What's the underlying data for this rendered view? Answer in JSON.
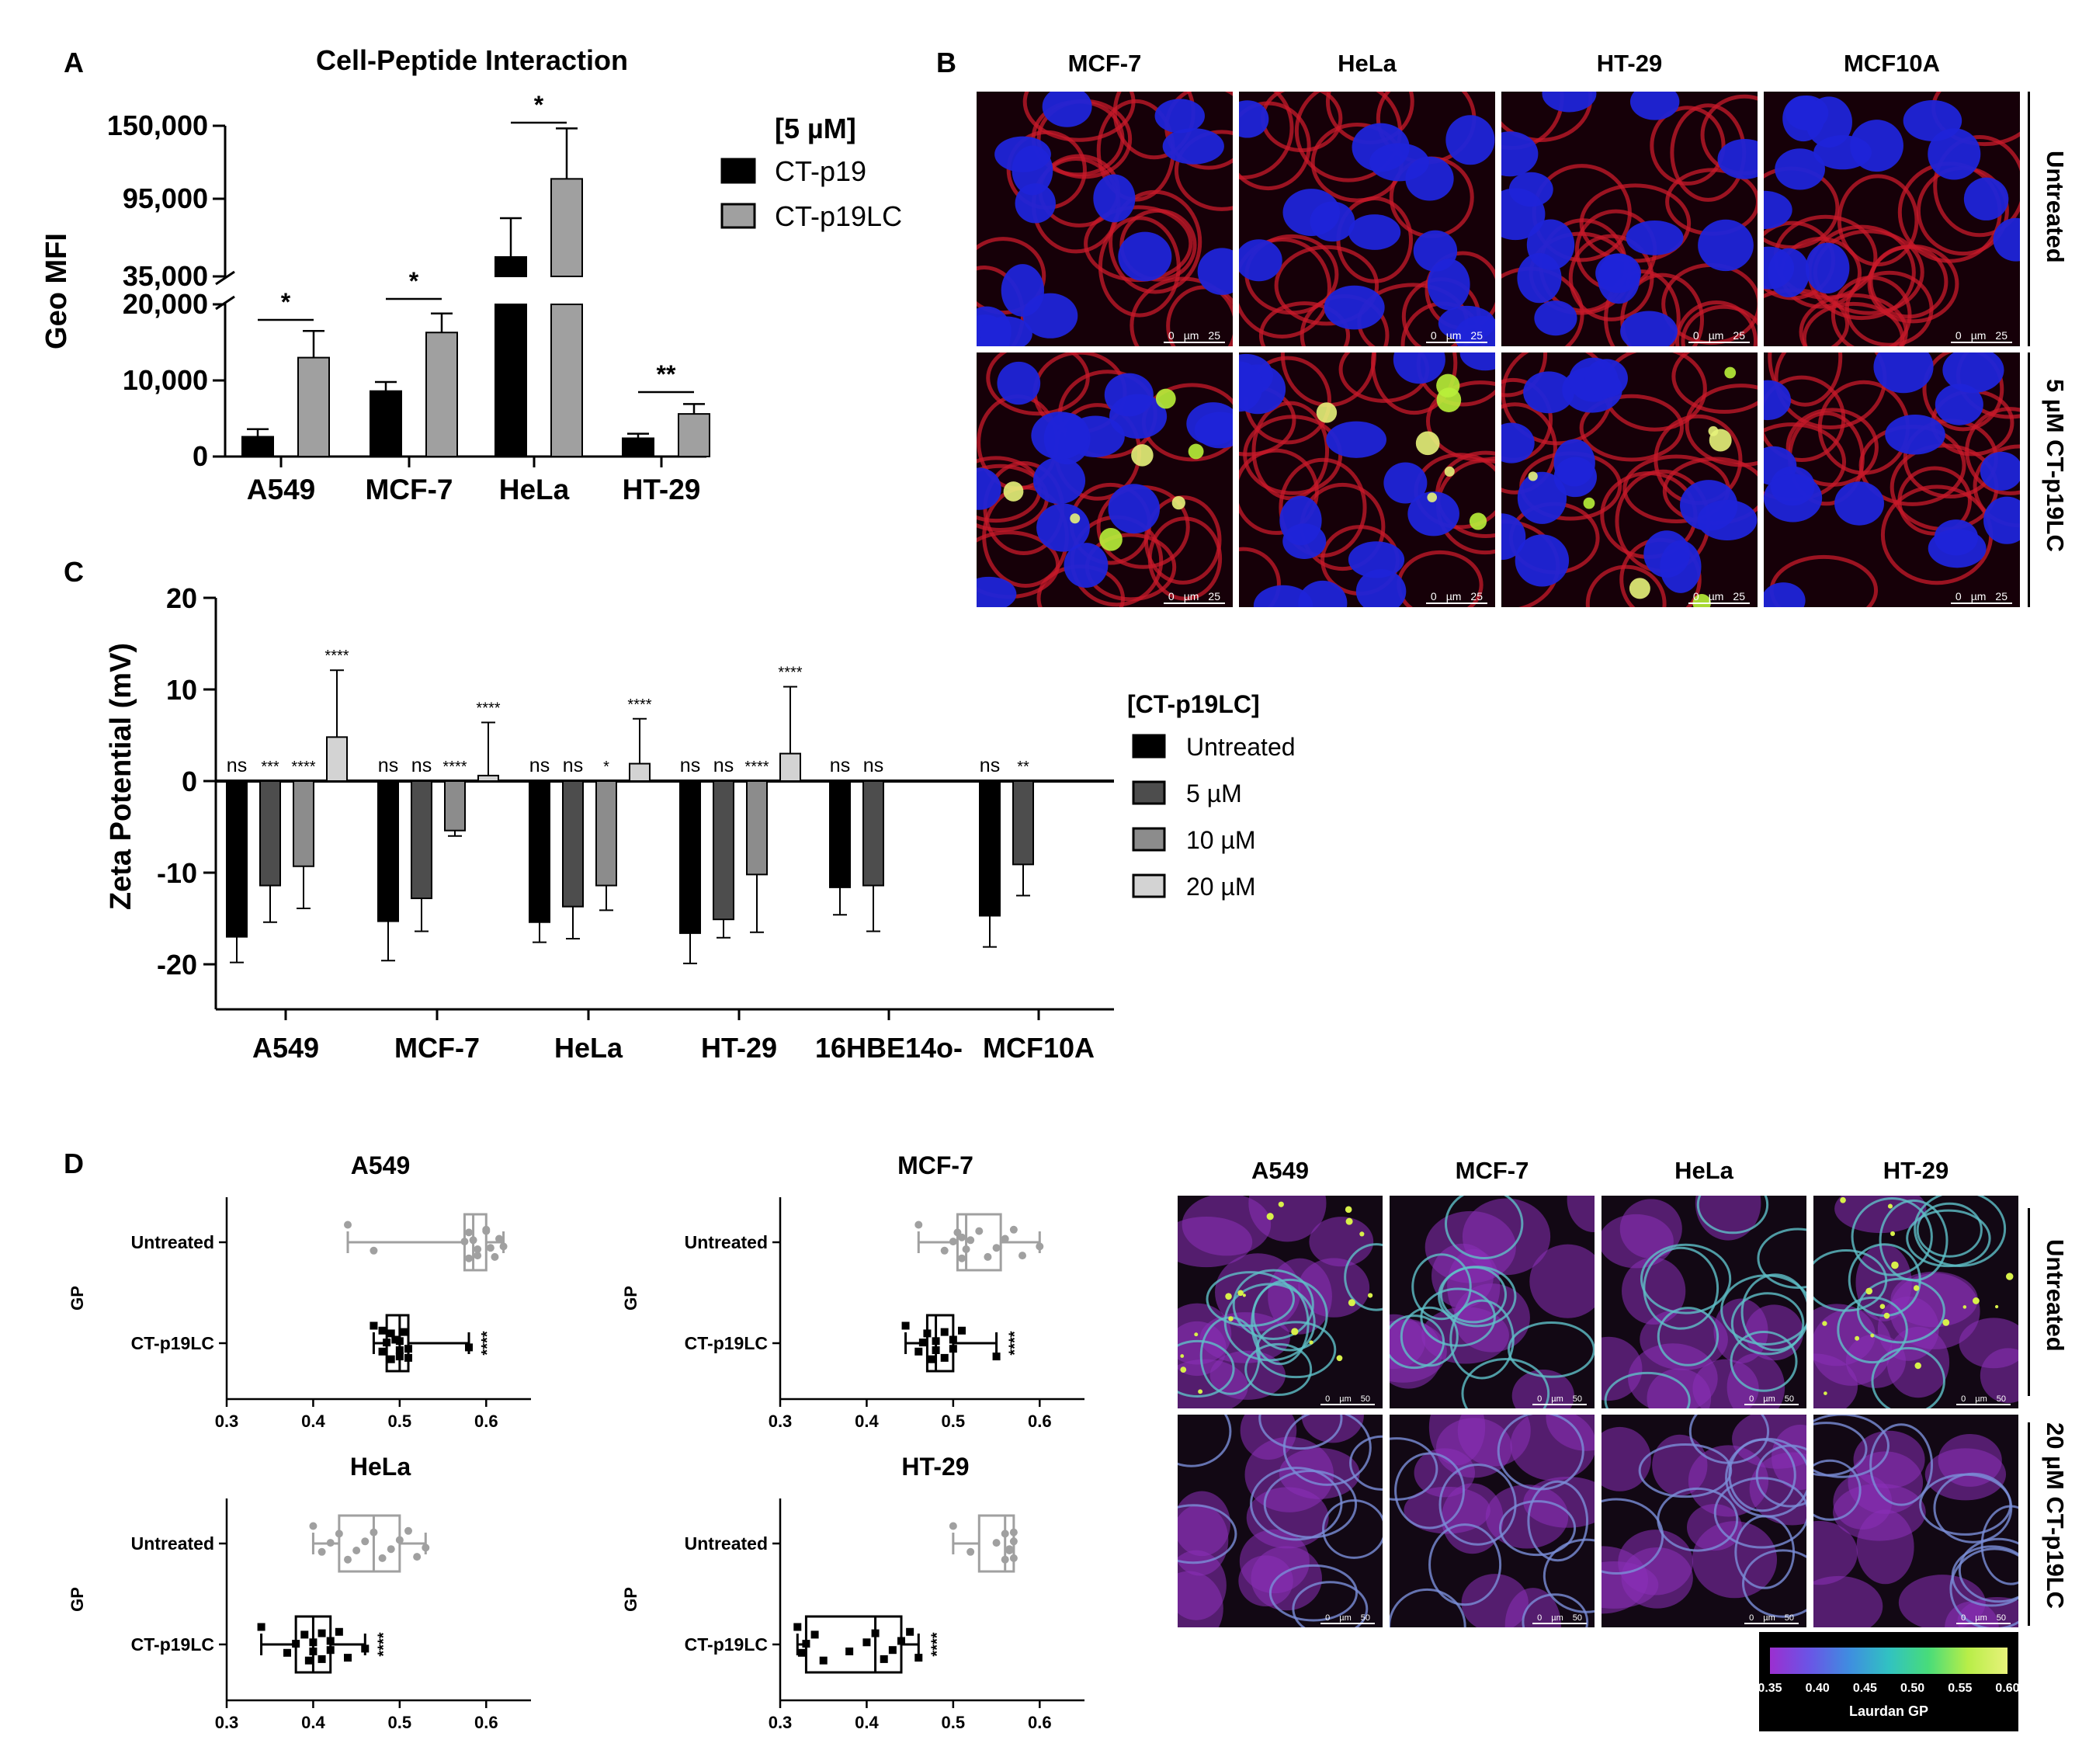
{
  "panel_labels": {
    "a": "A",
    "b": "B",
    "c": "C",
    "d": "D"
  },
  "panelA": {
    "title": "Cell-Peptide Interaction",
    "ylabel": "Geo MFI",
    "legend_title": "[5 µM]",
    "legend": [
      "CT-p19",
      "CT-p19LC"
    ],
    "yticks_upper": [
      "150,000",
      "95,000",
      "35,000"
    ],
    "yticks_lower": [
      "20,000",
      "10,000",
      "0"
    ],
    "significance": [
      "*",
      "*",
      "*",
      "**"
    ]
  },
  "panelB": {
    "columns": [
      "MCF-7",
      "HeLa",
      "HT-29",
      "MCF10A"
    ],
    "rows": [
      "Untreated",
      "5 µM CT-p19LC"
    ],
    "scale": {
      "zero": "0",
      "unit": "µm",
      "value": "25"
    }
  },
  "panelC": {
    "ylabel": "Zeta Potential (mV)",
    "yticks": [
      "20",
      "10",
      "0",
      "-10",
      "-20"
    ],
    "legend_title": "[CT-p19LC]",
    "legend": [
      "Untreated",
      "5 µM",
      "10 µM",
      "20 µM"
    ],
    "significance": {
      "A549": [
        "ns",
        "***",
        "****",
        "****"
      ],
      "MCF-7": [
        "ns",
        "ns",
        "****",
        "****"
      ],
      "HeLa": [
        "ns",
        "ns",
        "*",
        "****"
      ],
      "HT-29": [
        "ns",
        "ns",
        "****",
        "****"
      ],
      "16HBE14o-": [
        "ns",
        "ns"
      ],
      "MCF10A": [
        "ns",
        "**"
      ]
    }
  },
  "panelD": {
    "ylabel": "GP",
    "row_labels": [
      "Untreated",
      "CT-p19LC"
    ],
    "xticks": [
      "0.3",
      "0.4",
      "0.5",
      "0.6"
    ],
    "plot_titles": [
      "A549",
      "MCF-7",
      "HeLa",
      "HT-29"
    ],
    "significance": "****",
    "image_columns": [
      "A549",
      "MCF-7",
      "HeLa",
      "HT-29"
    ],
    "image_rows": [
      "Untreated",
      "20 µM CT-p19LC"
    ],
    "scale": {
      "zero": "0",
      "unit": "µm",
      "value": "50"
    },
    "colorbar": {
      "title": "Laurdan GP",
      "ticks": [
        "0.35",
        "0.40",
        "0.45",
        "0.50",
        "0.55",
        "0.60"
      ]
    }
  },
  "colors": {
    "black": "#000000",
    "dark_gray": "#4d4d4d",
    "mid_gray": "#8c8c8c",
    "light_gray": "#d3d3d3",
    "box_gray": "#a0a0a0"
  },
  "chart_data": [
    {
      "type": "bar",
      "panel": "A",
      "title": "Cell-Peptide Interaction",
      "ylabel": "Geo MFI",
      "categories": [
        "A549",
        "MCF-7",
        "HeLa",
        "HT-29"
      ],
      "broken_axis": {
        "lower": [
          0,
          20000
        ],
        "upper": [
          35000,
          150000
        ]
      },
      "series": [
        {
          "name": "CT-p19",
          "values": [
            2600,
            8600,
            50000,
            2400
          ],
          "errors": [
            1000,
            1200,
            30000,
            600
          ]
        },
        {
          "name": "CT-p19LC",
          "values": [
            13000,
            16300,
            110000,
            5600
          ],
          "errors": [
            3500,
            2500,
            38000,
            1300
          ]
        }
      ],
      "legend_placement": "right"
    },
    {
      "type": "bar",
      "panel": "C",
      "ylabel": "Zeta Potential (mV)",
      "ylim": [
        -25,
        20
      ],
      "categories": [
        "A549",
        "MCF-7",
        "HeLa",
        "HT-29",
        "16HBE14o-",
        "MCF10A"
      ],
      "series": [
        {
          "name": "Untreated",
          "values": [
            -17,
            -15.3,
            -15.4,
            -16.6,
            -11.6,
            -14.7
          ],
          "errors": [
            2.8,
            4.3,
            2.2,
            3.3,
            3.0,
            3.4
          ]
        },
        {
          "name": "5 µM",
          "values": [
            -11.4,
            -12.8,
            -13.7,
            -15.1,
            -11.4,
            -9.1
          ],
          "errors": [
            4.0,
            3.6,
            3.5,
            2.0,
            5.0,
            3.4
          ]
        },
        {
          "name": "10 µM",
          "values": [
            -9.3,
            -5.4,
            -11.4,
            -10.2,
            null,
            null
          ],
          "errors": [
            4.6,
            0.6,
            2.7,
            6.3,
            null,
            null
          ]
        },
        {
          "name": "20 µM",
          "values": [
            4.8,
            0.6,
            1.9,
            3.0,
            null,
            null
          ],
          "errors": [
            7.3,
            5.8,
            4.9,
            7.3,
            null,
            null
          ]
        }
      ],
      "legend_placement": "right"
    },
    {
      "type": "box",
      "panel": "D",
      "xlabel": "",
      "ylabel": "GP",
      "xlim": [
        0.3,
        0.65
      ],
      "plots": [
        {
          "title": "A549",
          "Untreated": {
            "min": 0.44,
            "q1": 0.575,
            "median": 0.585,
            "q3": 0.6,
            "max": 0.62,
            "points": [
              0.44,
              0.47,
              0.575,
              0.58,
              0.58,
              0.59,
              0.585,
              0.6,
              0.61,
              0.605,
              0.615,
              0.6,
              0.59,
              0.62
            ]
          },
          "CT-p19LC": {
            "min": 0.47,
            "q1": 0.485,
            "median": 0.5,
            "q3": 0.51,
            "max": 0.58,
            "points": [
              0.47,
              0.48,
              0.485,
              0.49,
              0.49,
              0.5,
              0.5,
              0.505,
              0.51,
              0.51,
              0.495,
              0.48,
              0.5,
              0.58
            ]
          }
        },
        {
          "title": "MCF-7",
          "Untreated": {
            "min": 0.46,
            "q1": 0.505,
            "median": 0.515,
            "q3": 0.555,
            "max": 0.6,
            "points": [
              0.46,
              0.49,
              0.5,
              0.505,
              0.51,
              0.515,
              0.52,
              0.53,
              0.54,
              0.55,
              0.56,
              0.57,
              0.58,
              0.6,
              0.51
            ]
          },
          "CT-p19LC": {
            "min": 0.445,
            "q1": 0.47,
            "median": 0.48,
            "q3": 0.5,
            "max": 0.55,
            "points": [
              0.445,
              0.46,
              0.465,
              0.47,
              0.475,
              0.48,
              0.48,
              0.49,
              0.49,
              0.5,
              0.5,
              0.51,
              0.55
            ]
          }
        },
        {
          "title": "HeLa",
          "Untreated": {
            "min": 0.4,
            "q1": 0.43,
            "median": 0.47,
            "q3": 0.5,
            "max": 0.53,
            "points": [
              0.4,
              0.41,
              0.42,
              0.43,
              0.44,
              0.45,
              0.46,
              0.47,
              0.48,
              0.49,
              0.5,
              0.51,
              0.52,
              0.53
            ]
          },
          "CT-p19LC": {
            "min": 0.34,
            "q1": 0.38,
            "median": 0.4,
            "q3": 0.42,
            "max": 0.46,
            "points": [
              0.34,
              0.37,
              0.38,
              0.39,
              0.395,
              0.4,
              0.4,
              0.41,
              0.41,
              0.42,
              0.42,
              0.43,
              0.44,
              0.46
            ]
          }
        },
        {
          "title": "HT-29",
          "Untreated": {
            "min": 0.5,
            "q1": 0.53,
            "median": 0.56,
            "q3": 0.57,
            "max": 0.57,
            "points": [
              0.5,
              0.52,
              0.55,
              0.56,
              0.56,
              0.565,
              0.57,
              0.57,
              0.57,
              0.565
            ]
          },
          "CT-p19LC": {
            "min": 0.32,
            "q1": 0.33,
            "median": 0.41,
            "q3": 0.44,
            "max": 0.46,
            "points": [
              0.32,
              0.325,
              0.33,
              0.34,
              0.35,
              0.38,
              0.4,
              0.41,
              0.42,
              0.43,
              0.44,
              0.45,
              0.46
            ]
          }
        }
      ]
    }
  ]
}
